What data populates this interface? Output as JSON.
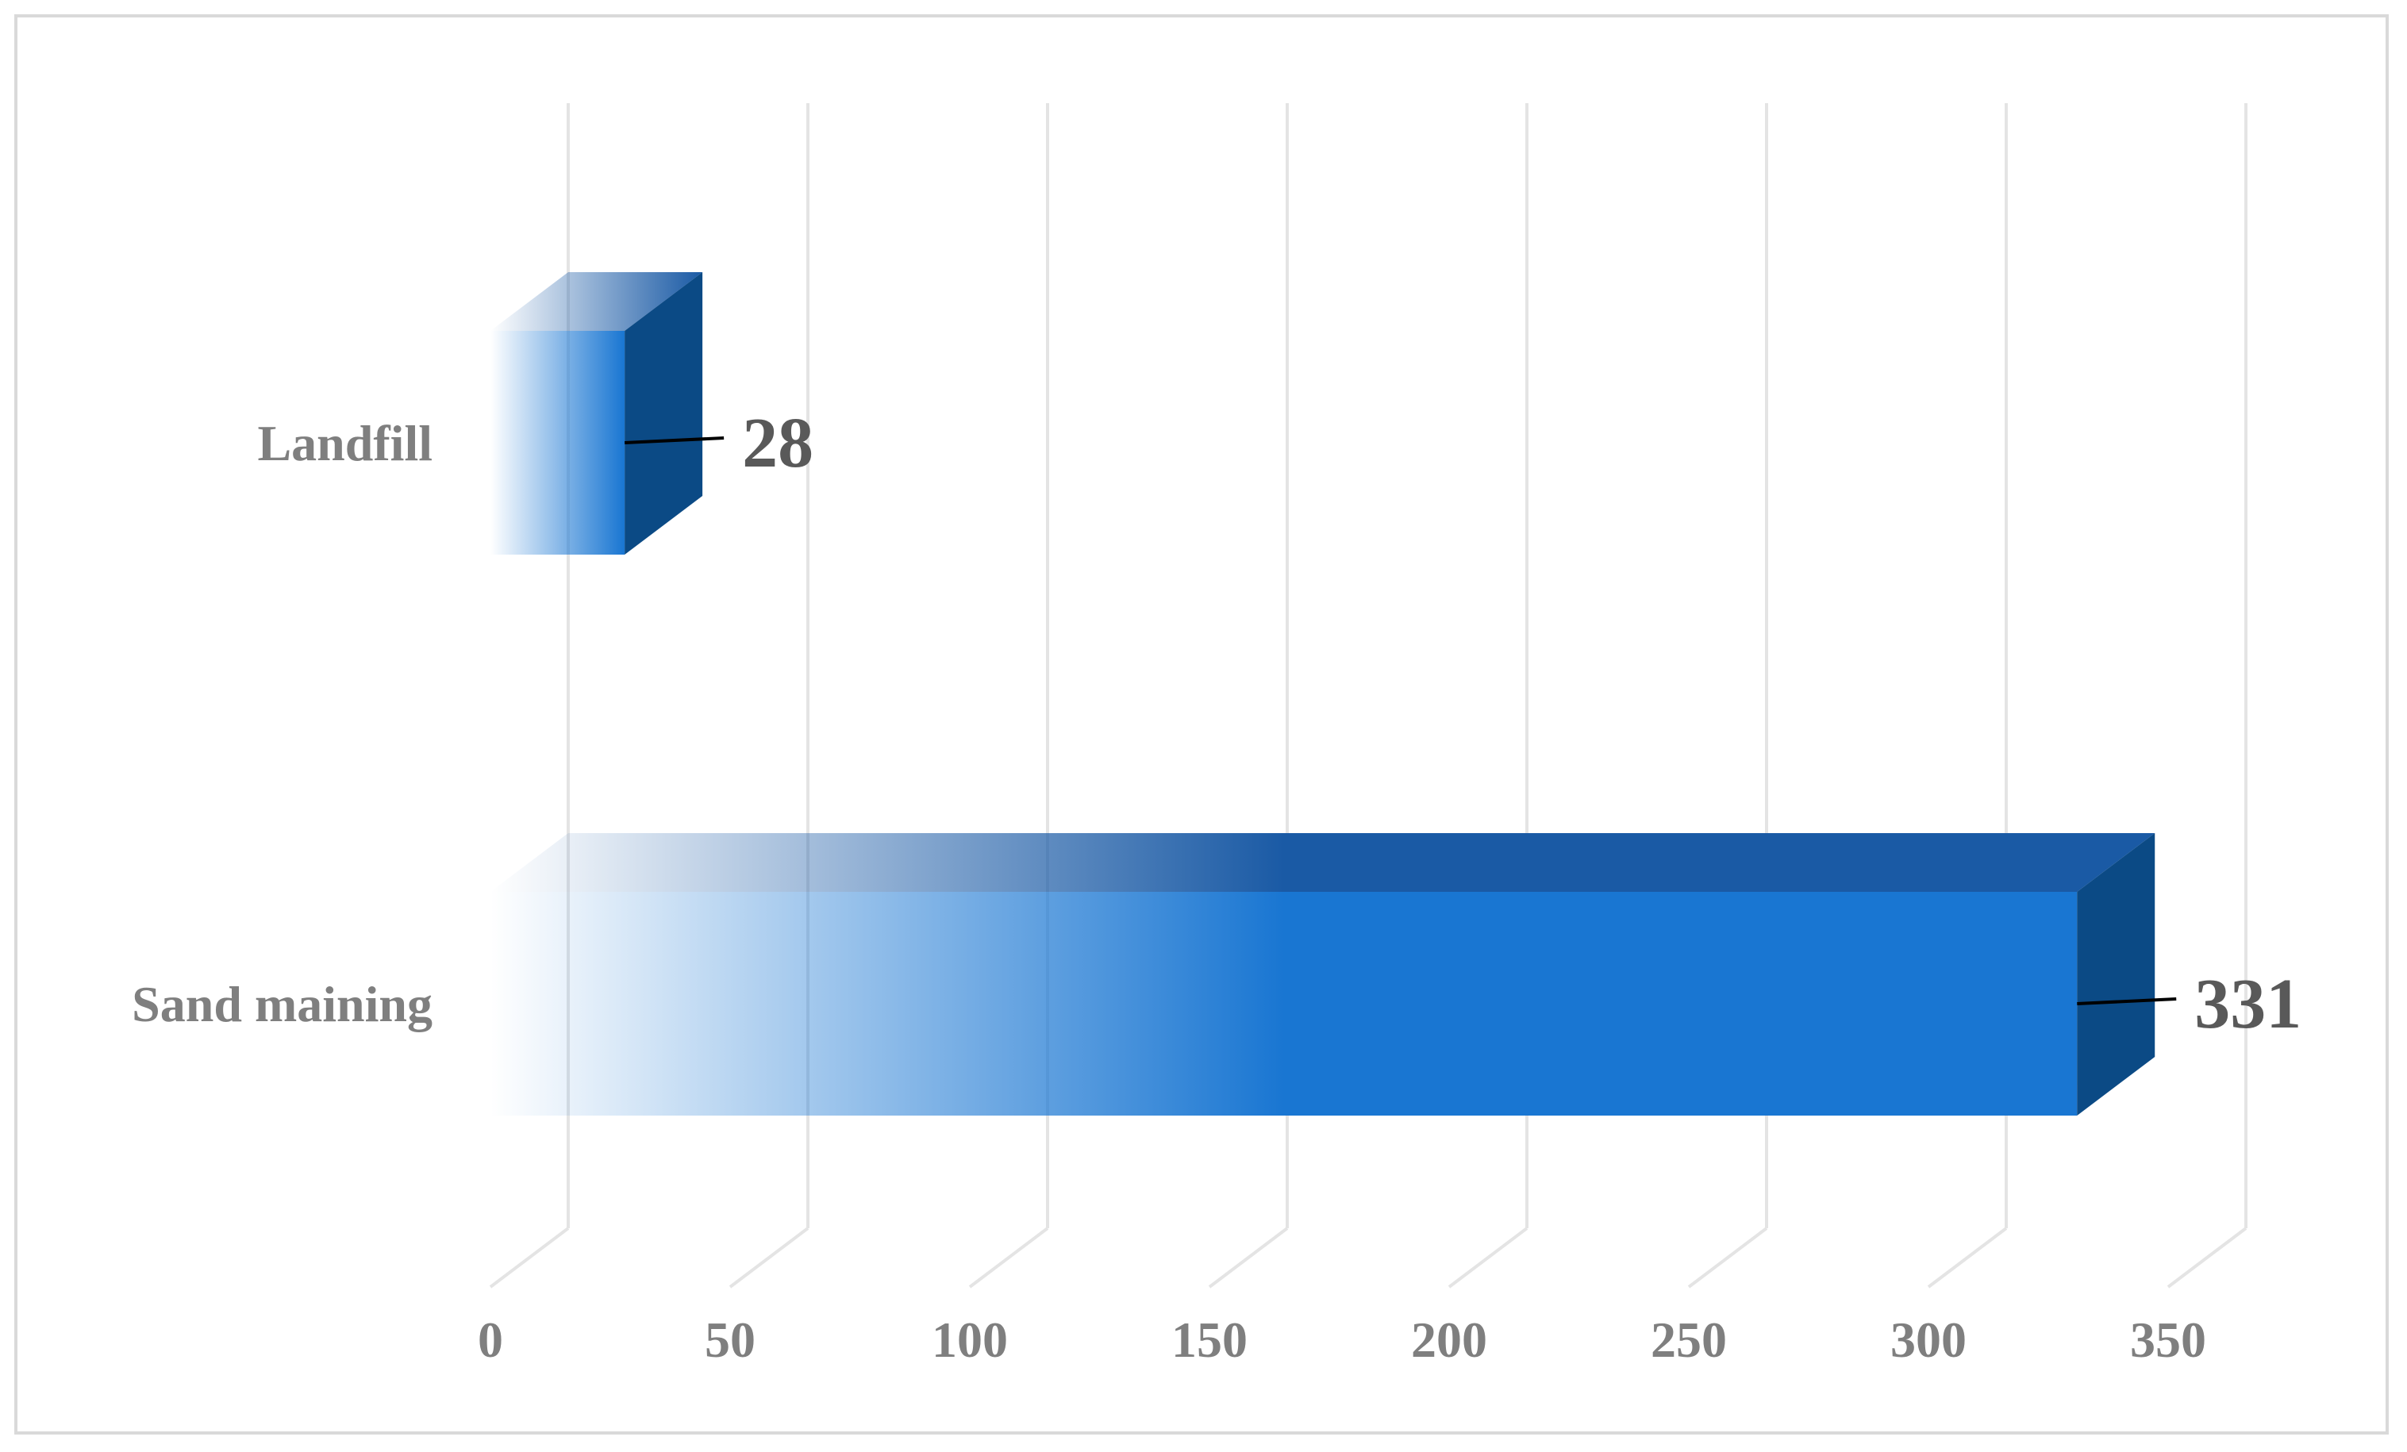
{
  "chart_data": {
    "type": "bar",
    "orientation": "horizontal",
    "style": "3d",
    "categories": [
      "Landfill",
      "Sand maining"
    ],
    "values": [
      28,
      331
    ],
    "data_labels": [
      "28",
      "331"
    ],
    "xlim": [
      0,
      350
    ],
    "x_ticks": [
      0,
      50,
      100,
      150,
      200,
      250,
      300,
      350
    ],
    "x_tick_labels": [
      "0",
      "50",
      "100",
      "150",
      "200",
      "250",
      "300",
      "350"
    ],
    "title": "",
    "xlabel": "",
    "ylabel": "",
    "grid": true,
    "legend": "none",
    "colors": {
      "bar_front": "#1976d2",
      "bar_top": "#1a5aa5",
      "bar_side": "#0b4a85",
      "gridline": "#e4e4e4",
      "tick_text": "#7f7f7f",
      "data_label_text": "#595959",
      "frame": "#d9d9d9"
    }
  }
}
